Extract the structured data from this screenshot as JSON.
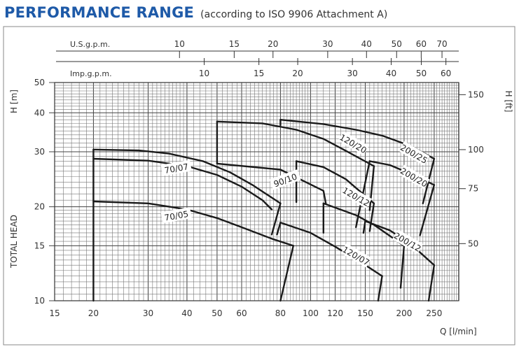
{
  "header": {
    "title": "PERFORMANCE RANGE",
    "subtitle": "(according to ISO 9906 Attachment A)"
  },
  "chart_data": {
    "type": "line",
    "title": "PERFORMANCE RANGE",
    "subtitle": "(according to ISO 9906 Attachment A)",
    "x_scale": "log",
    "y_scale": "log",
    "xlabel": "Q [l/min]",
    "ylabel_left": "H [m]",
    "ylabel_left_secondary": "TOTAL HEAD",
    "ylabel_right": "H [ft]",
    "xlim": [
      15,
      300
    ],
    "ylim": [
      10,
      50
    ],
    "x_ticks": [
      15,
      20,
      30,
      40,
      50,
      60,
      80,
      100,
      120,
      150,
      200,
      250
    ],
    "y_ticks": [
      10,
      15,
      20,
      30,
      40,
      50
    ],
    "y_ft_ticks": [
      50,
      75,
      100,
      150
    ],
    "usgpm_label": "U.S.g.p.m.",
    "usgpm_ticks": [
      10,
      15,
      20,
      30,
      40,
      50,
      60,
      70
    ],
    "impgpm_label": "Imp.g.p.m.",
    "impgpm_ticks": [
      10,
      15,
      20,
      30,
      40,
      50,
      60
    ],
    "grid": true,
    "series": [
      {
        "name": "70/07",
        "points": [
          [
            20,
            30.5
          ],
          [
            30,
            29.8
          ],
          [
            40,
            28.2
          ],
          [
            50,
            26.3
          ],
          [
            60,
            24.4
          ],
          [
            70,
            22.3
          ],
          [
            80,
            20.5
          ],
          [
            75,
            16.3
          ],
          [
            20,
            28.5
          ]
        ],
        "segments": [
          [
            [
              20,
              30.5
            ],
            [
              28,
              30.3
            ],
            [
              35,
              29.6
            ],
            [
              45,
              28.0
            ],
            [
              55,
              25.8
            ],
            [
              65,
              23.5
            ],
            [
              80,
              20.5
            ]
          ],
          [
            [
              80,
              20.5
            ],
            [
              75,
              16.3
            ]
          ],
          [
            [
              20,
              28.5
            ],
            [
              30,
              28.1
            ],
            [
              40,
              27.0
            ],
            [
              50,
              25.3
            ],
            [
              60,
              23.2
            ],
            [
              70,
              21.0
            ],
            [
              75,
              19.6
            ]
          ]
        ],
        "label_at": [
          37,
          26.5
        ],
        "label_angle": -10
      },
      {
        "name": "70/05",
        "points": [
          [
            20,
            20.8
          ],
          [
            30,
            20.5
          ],
          [
            40,
            19.6
          ],
          [
            50,
            18.5
          ],
          [
            60,
            17.3
          ],
          [
            75,
            15.7
          ],
          [
            80,
            15.3
          ],
          [
            90,
            15.0
          ],
          [
            80,
            10
          ]
        ],
        "segments": [
          [
            [
              20,
              20.8
            ],
            [
              30,
              20.5
            ],
            [
              40,
              19.6
            ],
            [
              50,
              18.4
            ],
            [
              60,
              17.2
            ],
            [
              75,
              15.8
            ],
            [
              88,
              15.0
            ]
          ],
          [
            [
              88,
              15.0
            ],
            [
              80,
              10
            ]
          ],
          [
            [
              20,
              10
            ],
            [
              20,
              30.5
            ]
          ]
        ],
        "label_at": [
          37,
          18.7
        ],
        "label_angle": -10
      },
      {
        "name": "90/10",
        "points": [
          [
            50,
            37.5
          ],
          [
            80,
            36.5
          ],
          [
            110,
            33
          ],
          [
            160,
            27
          ],
          [
            120,
            20.5
          ]
        ],
        "segments": [
          [
            [
              50,
              37.5
            ],
            [
              70,
              37.0
            ],
            [
              90,
              35.3
            ],
            [
              110,
              33.0
            ],
            [
              130,
              30.2
            ],
            [
              160,
              27.0
            ]
          ],
          [
            [
              160,
              27.0
            ],
            [
              155,
              19.5
            ]
          ],
          [
            [
              50,
              37.5
            ],
            [
              50,
              27.5
            ]
          ],
          [
            [
              50,
              27.5
            ],
            [
              80,
              26.3
            ],
            [
              110,
              22.5
            ],
            [
              112,
              20.5
            ]
          ]
        ],
        "label_at": [
          83,
          24.3
        ],
        "label_angle": -20
      },
      {
        "name": "120/20",
        "points": [
          [
            90,
            28.0
          ],
          [
            110,
            26.5
          ],
          [
            160,
            20.5
          ]
        ],
        "segments": [
          [
            [
              90,
              28.0
            ],
            [
              110,
              26.8
            ],
            [
              130,
              24.5
            ],
            [
              160,
              20.5
            ]
          ],
          [
            [
              160,
              20.5
            ],
            [
              155,
              16.7
            ]
          ],
          [
            [
              90,
              28.0
            ],
            [
              90,
              20.7
            ]
          ]
        ],
        "label_at": [
          137,
          31.8
        ],
        "label_angle": 30
      },
      {
        "name": "120/12",
        "points": [
          [
            110,
            20.5
          ],
          [
            140,
            18.5
          ],
          [
            160,
            17
          ],
          [
            200,
            15
          ]
        ],
        "segments": [
          [
            [
              110,
              20.5
            ],
            [
              140,
              18.8
            ],
            [
              160,
              17.5
            ],
            [
              200,
              15.0
            ]
          ],
          [
            [
              200,
              15.0
            ],
            [
              195,
              11
            ]
          ],
          [
            [
              110,
              20.5
            ],
            [
              110,
              16.5
            ]
          ]
        ],
        "label_at": [
          140,
          21.5
        ],
        "label_angle": 30
      },
      {
        "name": "120/07",
        "points": [
          [
            80,
            17.8
          ],
          [
            100,
            16.3
          ],
          [
            120,
            14.5
          ],
          [
            170,
            12
          ],
          [
            160,
            10
          ]
        ],
        "segments": [
          [
            [
              80,
              17.8
            ],
            [
              100,
              16.5
            ],
            [
              120,
              14.9
            ],
            [
              145,
              13.3
            ],
            [
              170,
              12.0
            ]
          ],
          [
            [
              170,
              12.0
            ],
            [
              165,
              10
            ]
          ],
          [
            [
              80,
              17.8
            ],
            [
              78,
              16.3
            ]
          ]
        ],
        "label_at": [
          140,
          13.9
        ],
        "label_angle": 30
      },
      {
        "name": "200/25",
        "points": [
          [
            80,
            38.0
          ],
          [
            120,
            36
          ],
          [
            160,
            34
          ],
          [
            200,
            31.5
          ],
          [
            250,
            28.5
          ],
          [
            230,
            20.5
          ]
        ],
        "segments": [
          [
            [
              80,
              38.0
            ],
            [
              110,
              36.8
            ],
            [
              140,
              35.3
            ],
            [
              170,
              33.8
            ],
            [
              210,
              31.3
            ],
            [
              250,
              28.5
            ]
          ],
          [
            [
              250,
              28.5
            ],
            [
              230,
              20.5
            ]
          ],
          [
            [
              80,
              38.0
            ],
            [
              80,
              36.5
            ]
          ]
        ],
        "label_at": [
          215,
          29.5
        ],
        "label_angle": 30
      },
      {
        "name": "200/20",
        "points": [
          [
            155,
            28.0
          ],
          [
            200,
            26
          ],
          [
            250,
            23.5
          ],
          [
            230,
            16
          ]
        ],
        "segments": [
          [
            [
              155,
              28.0
            ],
            [
              180,
              27.2
            ],
            [
              210,
              25.5
            ],
            [
              250,
              23.5
            ]
          ],
          [
            [
              250,
              23.5
            ],
            [
              225,
              16.2
            ]
          ],
          [
            [
              155,
              28.0
            ],
            [
              140,
              17.2
            ]
          ]
        ],
        "label_at": [
          215,
          24.8
        ],
        "label_angle": 30
      },
      {
        "name": "200/12",
        "points": [
          [
            150,
            18
          ],
          [
            200,
            15.5
          ],
          [
            250,
            13
          ],
          [
            240,
            10
          ]
        ],
        "segments": [
          [
            [
              150,
              18
            ],
            [
              180,
              16.8
            ],
            [
              210,
              15.2
            ],
            [
              250,
              13.0
            ]
          ],
          [
            [
              250,
              13.0
            ],
            [
              240,
              10
            ]
          ],
          [
            [
              150,
              18
            ],
            [
              148,
              16.5
            ]
          ]
        ],
        "label_at": [
          205,
          15.4
        ],
        "label_angle": 30
      }
    ]
  }
}
